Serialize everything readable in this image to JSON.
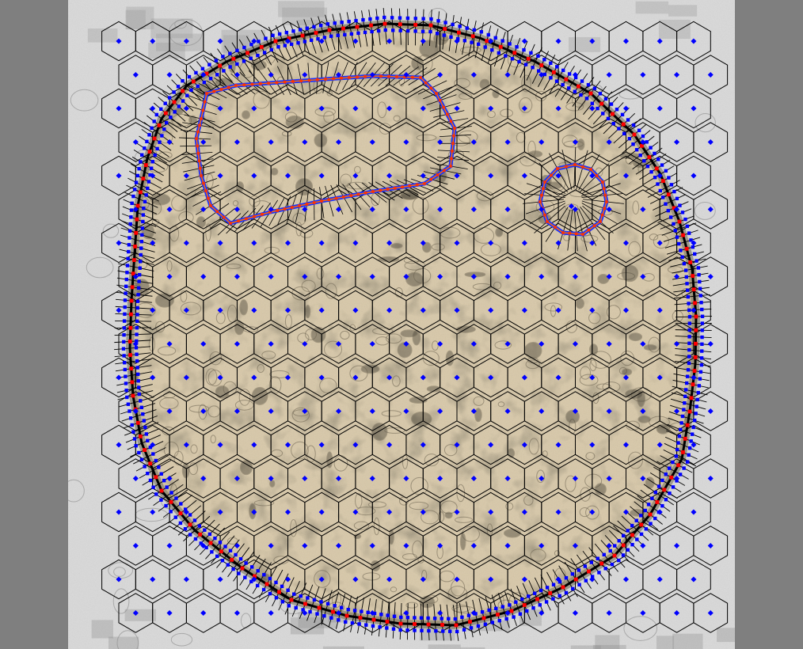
{
  "image": {
    "description_tag": "voronoi-mesh-overlay-on-electron-micrograph",
    "colors": {
      "outer_background": "#7f7f7f",
      "micrograph_background": "#d9d9d9",
      "tissue_fill": "#d8c8a8",
      "tissue_dark": "#6e6752",
      "voronoi_edge": "#000000",
      "seed_point": "#0000ff",
      "boundary_point_red": "#ff0000",
      "boundary_line_blue": "#1a33ff",
      "inner_boundary_orange": "#ff6a00"
    },
    "mesh": {
      "hex_spacing_x_units": 42.7,
      "hex_spacing_y_units": 42.5,
      "columns": 19,
      "rows": 18
    }
  }
}
